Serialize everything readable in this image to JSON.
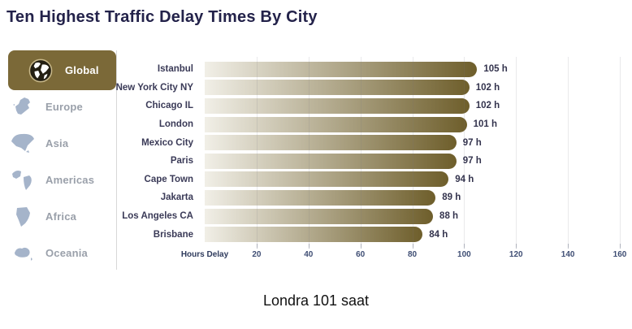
{
  "title": "Ten Highest Traffic Delay Times By City",
  "sidebar": {
    "items": [
      {
        "label": "Global",
        "icon": "globe-icon",
        "active": true
      },
      {
        "label": "Europe",
        "icon": "europe-map-icon",
        "active": false
      },
      {
        "label": "Asia",
        "icon": "asia-map-icon",
        "active": false
      },
      {
        "label": "Americas",
        "icon": "americas-map-icon",
        "active": false
      },
      {
        "label": "Africa",
        "icon": "africa-map-icon",
        "active": false
      },
      {
        "label": "Oceania",
        "icon": "oceania-map-icon",
        "active": false
      }
    ]
  },
  "chart_data": {
    "type": "bar",
    "orientation": "horizontal",
    "title": "Ten Highest Traffic Delay Times By City",
    "categories": [
      "Istanbul",
      "New York City NY",
      "Chicago IL",
      "London",
      "Mexico City",
      "Paris",
      "Cape Town",
      "Jakarta",
      "Los Angeles CA",
      "Brisbane"
    ],
    "values": [
      105,
      102,
      102,
      101,
      97,
      97,
      94,
      89,
      88,
      84
    ],
    "value_labels": [
      "105 h",
      "102 h",
      "102 h",
      "101 h",
      "97 h",
      "97 h",
      "94 h",
      "89 h",
      "88 h",
      "84 h"
    ],
    "xlabel": "Hours Delay",
    "ylabel": "",
    "xlim": [
      0,
      160
    ],
    "xticks": [
      20,
      40,
      60,
      80,
      100,
      120,
      140,
      160
    ],
    "grid": true,
    "legend": "none",
    "bar_gradient_left": "#f1efe7",
    "bar_gradient_right": "#6e5e2b"
  },
  "colors": {
    "accent_gold": "#7b6938",
    "bar_dark": "#6e5e2b",
    "bar_light": "#f1efe7",
    "title_navy": "#23224a",
    "sidebar_inactive_text": "#9aa0aa",
    "continent_icon": "#a5b4ca"
  },
  "caption": "Londra 101 saat"
}
